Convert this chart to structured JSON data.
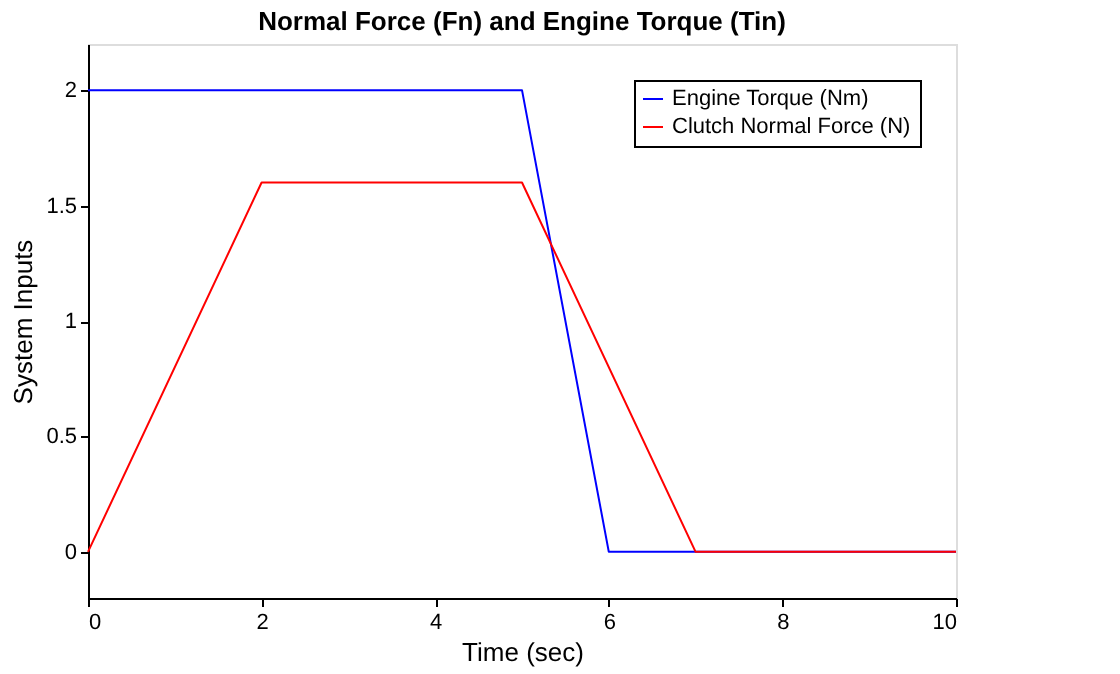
{
  "chart_data": {
    "type": "line",
    "title": "Normal Force (Fn) and Engine Torque (Tin)",
    "xlabel": "Time (sec)",
    "ylabel": "System Inputs",
    "series": [
      {
        "name": "Engine Torque (Nm)",
        "color": "#0000ff",
        "x": [
          0,
          5,
          6,
          10
        ],
        "values": [
          2,
          2,
          0,
          0
        ]
      },
      {
        "name": "Clutch Normal Force (N)",
        "color": "#ff0000",
        "x": [
          0,
          2,
          5,
          7,
          10
        ],
        "values": [
          0,
          1.6,
          1.6,
          0,
          0
        ]
      }
    ],
    "xlim": [
      0,
      10
    ],
    "xticks": [
      0,
      2,
      4,
      6,
      8,
      10
    ],
    "ylim": [
      -0.2,
      2.2
    ],
    "yticks": [
      0,
      0.5,
      1,
      1.5,
      2
    ],
    "grid": false,
    "legend": "top right",
    "marker": "none",
    "line_style": "solid"
  }
}
